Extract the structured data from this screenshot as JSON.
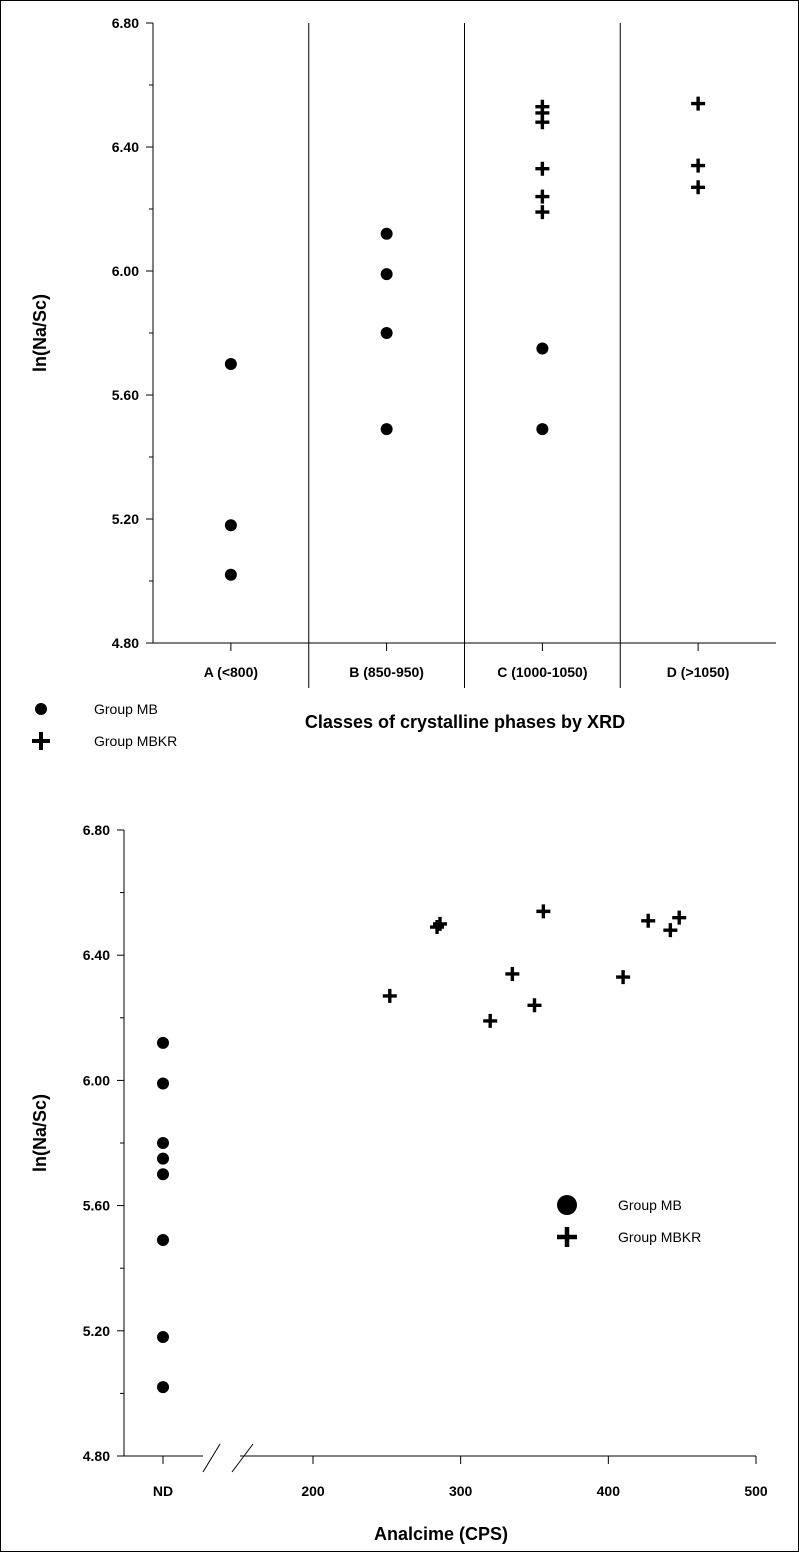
{
  "chart_data": [
    {
      "type": "scatter",
      "ylabel": "ln(Na/Sc)",
      "xlabel": "Classes of crystalline phases by XRD",
      "ylim": [
        4.8,
        6.8
      ],
      "y_ticks": [
        "4.80",
        "5.20",
        "5.60",
        "6.00",
        "6.40",
        "6.80"
      ],
      "categories": [
        "A (<800)",
        "B (850-950)",
        "C (1000-1050)",
        "D (>1050)"
      ],
      "legend": {
        "placement": "bottom-left",
        "entries": [
          "Group MB",
          "Group MBKR"
        ]
      },
      "series": [
        {
          "name": "Group MB",
          "marker": "circle",
          "points": [
            {
              "category": "A (<800)",
              "y": 5.7
            },
            {
              "category": "A (<800)",
              "y": 5.18
            },
            {
              "category": "A (<800)",
              "y": 5.02
            },
            {
              "category": "B (850-950)",
              "y": 6.12
            },
            {
              "category": "B (850-950)",
              "y": 5.99
            },
            {
              "category": "B (850-950)",
              "y": 5.8
            },
            {
              "category": "B (850-950)",
              "y": 5.49
            },
            {
              "category": "C (1000-1050)",
              "y": 5.75
            },
            {
              "category": "C (1000-1050)",
              "y": 5.49
            }
          ]
        },
        {
          "name": "Group MBKR",
          "marker": "plus",
          "points": [
            {
              "category": "C (1000-1050)",
              "y": 6.53
            },
            {
              "category": "C (1000-1050)",
              "y": 6.51
            },
            {
              "category": "C (1000-1050)",
              "y": 6.48
            },
            {
              "category": "C (1000-1050)",
              "y": 6.33
            },
            {
              "category": "C (1000-1050)",
              "y": 6.24
            },
            {
              "category": "C (1000-1050)",
              "y": 6.19
            },
            {
              "category": "D (>1050)",
              "y": 6.54
            },
            {
              "category": "D (>1050)",
              "y": 6.34
            },
            {
              "category": "D (>1050)",
              "y": 6.27
            }
          ]
        }
      ]
    },
    {
      "type": "scatter",
      "ylabel": "ln(Na/Sc)",
      "xlabel": "Analcime (CPS)",
      "ylim": [
        4.8,
        6.8
      ],
      "y_ticks": [
        "4.80",
        "5.20",
        "5.60",
        "6.00",
        "6.40",
        "6.80"
      ],
      "x_tick_labels": [
        "ND",
        "200",
        "300",
        "400",
        "500"
      ],
      "x_ticks": [
        200,
        300,
        400,
        500
      ],
      "xlim": [
        100,
        500
      ],
      "axis_break": true,
      "legend": {
        "placement": "right",
        "entries": [
          "Group MB",
          "Group MBKR"
        ]
      },
      "series": [
        {
          "name": "Group MB",
          "marker": "circle",
          "points": [
            {
              "x": "ND",
              "y": 6.12
            },
            {
              "x": "ND",
              "y": 5.99
            },
            {
              "x": "ND",
              "y": 5.8
            },
            {
              "x": "ND",
              "y": 5.75
            },
            {
              "x": "ND",
              "y": 5.7
            },
            {
              "x": "ND",
              "y": 5.49
            },
            {
              "x": "ND",
              "y": 5.18
            },
            {
              "x": "ND",
              "y": 5.02
            }
          ]
        },
        {
          "name": "Group MBKR",
          "marker": "plus",
          "points": [
            {
              "x": 252,
              "y": 6.27
            },
            {
              "x": 284,
              "y": 6.49
            },
            {
              "x": 286,
              "y": 6.5
            },
            {
              "x": 320,
              "y": 6.19
            },
            {
              "x": 335,
              "y": 6.34
            },
            {
              "x": 350,
              "y": 6.24
            },
            {
              "x": 356,
              "y": 6.54
            },
            {
              "x": 410,
              "y": 6.33
            },
            {
              "x": 427,
              "y": 6.51
            },
            {
              "x": 442,
              "y": 6.48
            },
            {
              "x": 448,
              "y": 6.52
            }
          ]
        }
      ]
    }
  ]
}
